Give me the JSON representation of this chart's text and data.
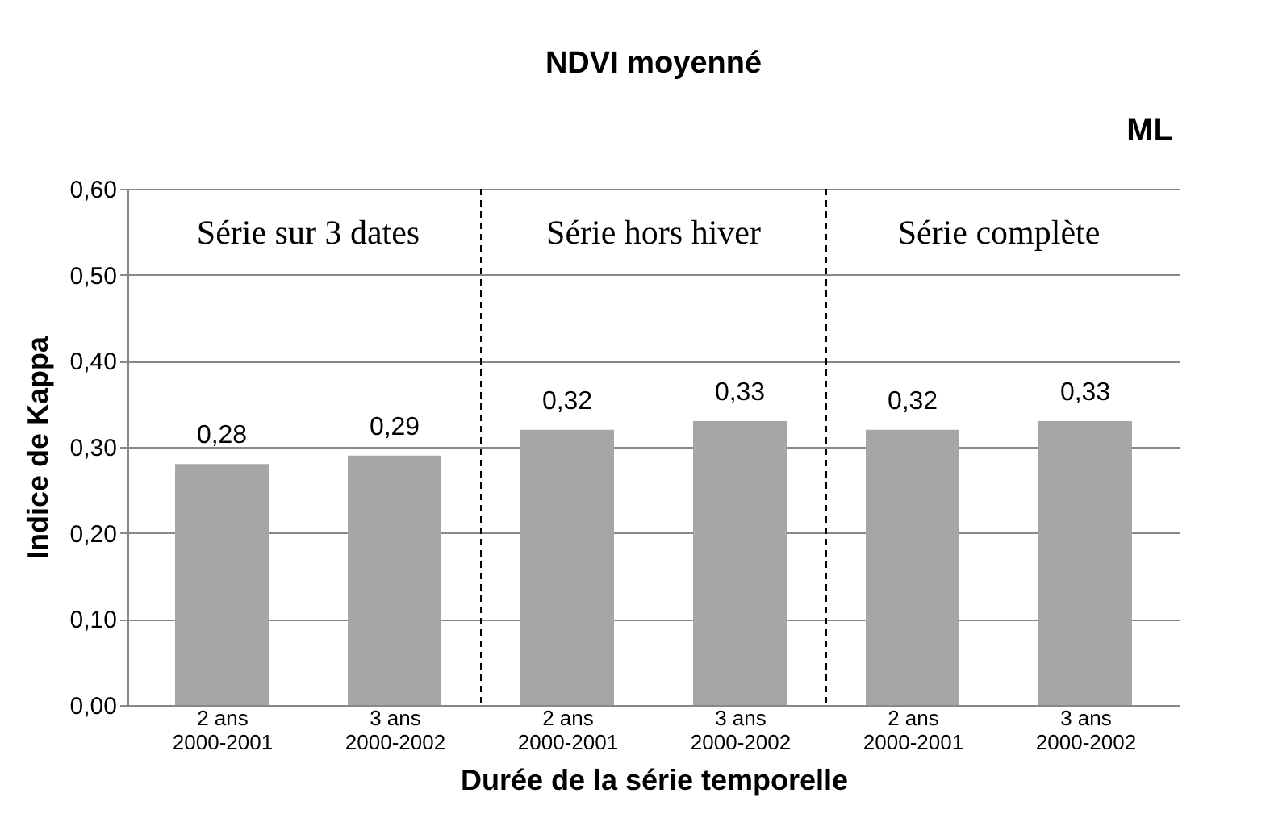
{
  "chart_data": {
    "type": "bar",
    "title": "NDVI moyenné",
    "xlabel": "Durée de la série temporelle",
    "ylabel": "Indice de Kappa",
    "categories": [
      "2 ans\n2000-2001",
      "3 ans\n2000-2002",
      "2 ans\n2000-2001",
      "3 ans\n2000-2002",
      "2 ans\n2000-2001",
      "3 ans\n2000-2002"
    ],
    "values": [
      0.28,
      0.29,
      0.32,
      0.33,
      0.32,
      0.33
    ],
    "value_labels": [
      "0,28",
      "0,29",
      "0,32",
      "0,33",
      "0,32",
      "0,33"
    ],
    "color": "#a6a6a6",
    "ylim": [
      0,
      0.6
    ],
    "yticks": [
      {
        "value": 0,
        "label": "0,00"
      },
      {
        "value": 0.1,
        "label": "0,10"
      },
      {
        "value": 0.2,
        "label": "0,20"
      },
      {
        "value": 0.3,
        "label": "0,30"
      },
      {
        "value": 0.4,
        "label": "0,40"
      },
      {
        "value": 0.5,
        "label": "0,50"
      },
      {
        "value": 0.6,
        "label": "0,60"
      }
    ],
    "grid": "y",
    "annotations": [
      "Série sur 3 dates",
      "Série hors hiver",
      "Série complète",
      "ML"
    ]
  }
}
